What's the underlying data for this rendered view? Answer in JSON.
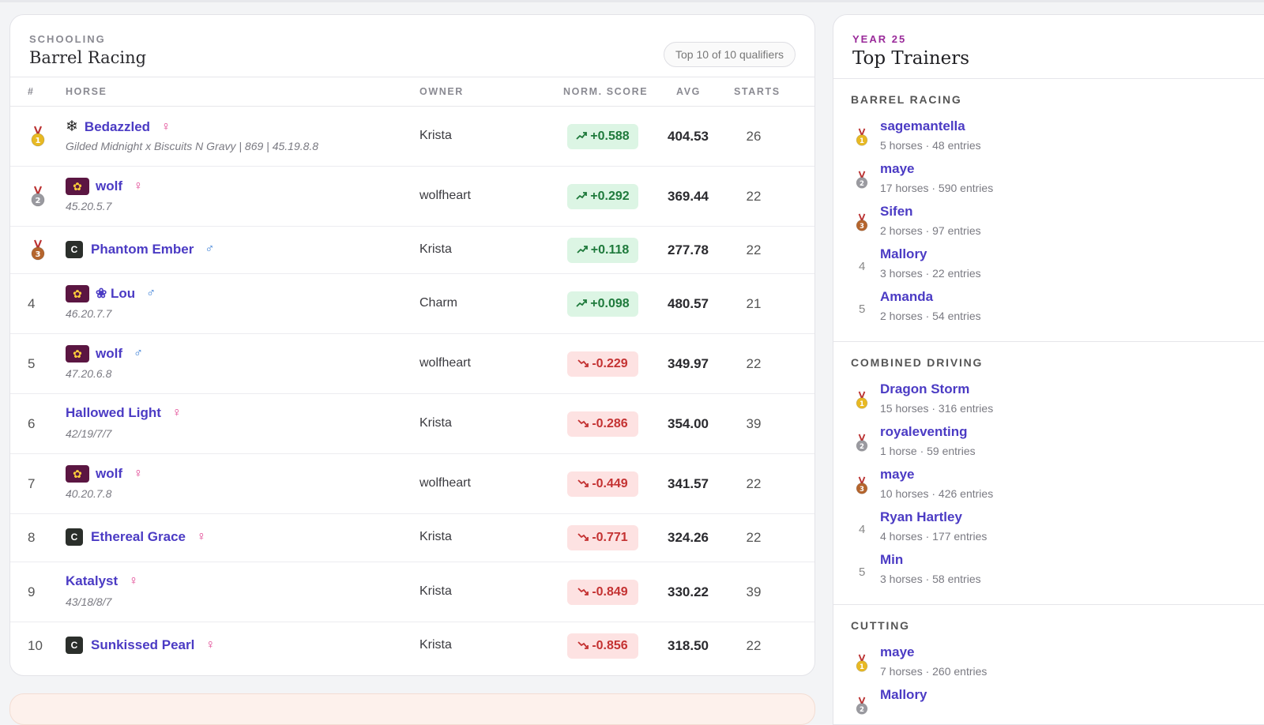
{
  "leaderboard": {
    "eyebrow": "SCHOOLING",
    "title": "Barrel Racing",
    "qualifiers_pill": "Top 10 of 10 qualifiers",
    "columns": {
      "rank": "#",
      "horse": "HORSE",
      "owner": "OWNER",
      "score": "NORM. SCORE",
      "avg": "AVG",
      "starts": "STARTS"
    },
    "rows": [
      {
        "rank": "1",
        "medal": "gold",
        "badge": "snowflake",
        "name": "Bedazzled",
        "sex": "♀",
        "sub": "Gilded Midnight x Biscuits N Gravy | 869 | 45.19.8.8",
        "owner": "Krista",
        "score": "+0.588",
        "dir": "pos",
        "avg": "404.53",
        "starts": "26"
      },
      {
        "rank": "2",
        "medal": "silver",
        "badge": "flower",
        "name": "wolf",
        "sex": "♀",
        "sub": "45.20.5.7",
        "owner": "wolfheart",
        "score": "+0.292",
        "dir": "pos",
        "avg": "369.44",
        "starts": "22"
      },
      {
        "rank": "3",
        "medal": "bronze",
        "badge": "c",
        "name": "Phantom Ember",
        "sex": "♂",
        "sub": "",
        "owner": "Krista",
        "score": "+0.118",
        "dir": "pos",
        "avg": "277.78",
        "starts": "22"
      },
      {
        "rank": "4",
        "medal": "",
        "badge": "flower",
        "name": "❀ Lou",
        "sex": "♂",
        "sub": "46.20.7.7",
        "owner": "Charm",
        "score": "+0.098",
        "dir": "pos",
        "avg": "480.57",
        "starts": "21"
      },
      {
        "rank": "5",
        "medal": "",
        "badge": "flower",
        "name": "wolf",
        "sex": "♂",
        "sub": "47.20.6.8",
        "owner": "wolfheart",
        "score": "-0.229",
        "dir": "neg",
        "avg": "349.97",
        "starts": "22"
      },
      {
        "rank": "6",
        "medal": "",
        "badge": "",
        "name": "Hallowed Light",
        "sex": "♀",
        "sub": "42/19/7/7",
        "owner": "Krista",
        "score": "-0.286",
        "dir": "neg",
        "avg": "354.00",
        "starts": "39"
      },
      {
        "rank": "7",
        "medal": "",
        "badge": "flower",
        "name": "wolf",
        "sex": "♀",
        "sub": "40.20.7.8",
        "owner": "wolfheart",
        "score": "-0.449",
        "dir": "neg",
        "avg": "341.57",
        "starts": "22"
      },
      {
        "rank": "8",
        "medal": "",
        "badge": "c",
        "name": "Ethereal Grace",
        "sex": "♀",
        "sub": "",
        "owner": "Krista",
        "score": "-0.771",
        "dir": "neg",
        "avg": "324.26",
        "starts": "22"
      },
      {
        "rank": "9",
        "medal": "",
        "badge": "",
        "name": "Katalyst",
        "sex": "♀",
        "sub": "43/18/8/7",
        "owner": "Krista",
        "score": "-0.849",
        "dir": "neg",
        "avg": "330.22",
        "starts": "39"
      },
      {
        "rank": "10",
        "medal": "",
        "badge": "c",
        "name": "Sunkissed Pearl",
        "sex": "♀",
        "sub": "",
        "owner": "Krista",
        "score": "-0.856",
        "dir": "neg",
        "avg": "318.50",
        "starts": "22"
      }
    ]
  },
  "sidebar": {
    "eyebrow": "YEAR 25",
    "title": "Top Trainers",
    "sections": [
      {
        "title": "BARREL RACING",
        "trainers": [
          {
            "rank": "1",
            "medal": "gold",
            "name": "sagemantella",
            "meta": "5 horses · 48 entries"
          },
          {
            "rank": "2",
            "medal": "silver",
            "name": "maye",
            "meta": "17 horses · 590 entries"
          },
          {
            "rank": "3",
            "medal": "bronze",
            "name": "Sifen",
            "meta": "2 horses · 97 entries"
          },
          {
            "rank": "4",
            "medal": "",
            "name": "Mallory",
            "meta": "3 horses · 22 entries"
          },
          {
            "rank": "5",
            "medal": "",
            "name": "Amanda",
            "meta": "2 horses · 54 entries"
          }
        ]
      },
      {
        "title": "COMBINED DRIVING",
        "trainers": [
          {
            "rank": "1",
            "medal": "gold",
            "name": "Dragon Storm",
            "meta": "15 horses · 316 entries"
          },
          {
            "rank": "2",
            "medal": "silver",
            "name": "royaleventing",
            "meta": "1 horse · 59 entries"
          },
          {
            "rank": "3",
            "medal": "bronze",
            "name": "maye",
            "meta": "10 horses · 426 entries"
          },
          {
            "rank": "4",
            "medal": "",
            "name": "Ryan Hartley",
            "meta": "4 horses · 177 entries"
          },
          {
            "rank": "5",
            "medal": "",
            "name": "Min",
            "meta": "3 horses · 58 entries"
          }
        ]
      },
      {
        "title": "CUTTING",
        "trainers": [
          {
            "rank": "1",
            "medal": "gold",
            "name": "maye",
            "meta": "7 horses · 260 entries"
          },
          {
            "rank": "2",
            "medal": "silver",
            "name": "Mallory",
            "meta": ""
          }
        ]
      }
    ]
  },
  "colors": {
    "accent": "#4b3bc4",
    "gold": "#e8b923",
    "silver": "#9a9aa0",
    "bronze": "#b5652d",
    "positive": "#1f7a3c",
    "negative": "#c43232"
  }
}
